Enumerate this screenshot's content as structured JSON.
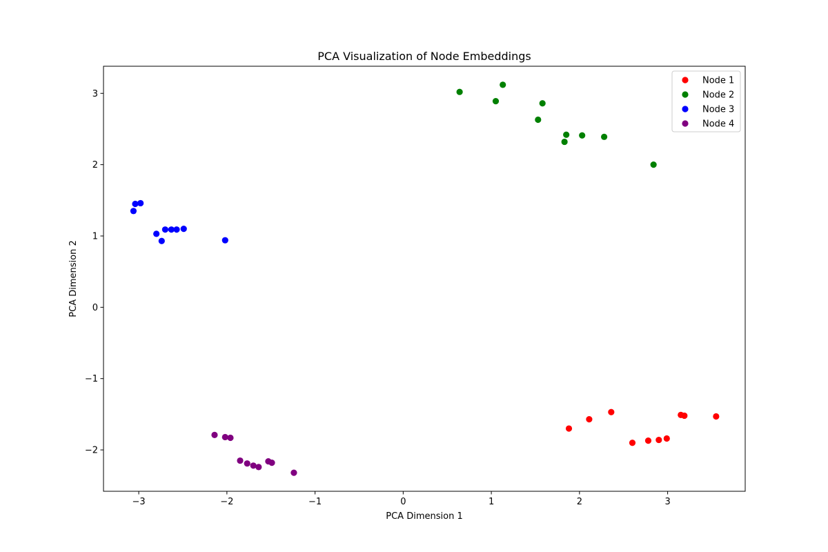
{
  "chart_data": {
    "type": "scatter",
    "title": "PCA Visualization of Node Embeddings",
    "xlabel": "PCA Dimension 1",
    "ylabel": "PCA Dimension 2",
    "xlim": [
      -3.4,
      3.88
    ],
    "ylim": [
      -2.58,
      3.38
    ],
    "xticks": [
      -3,
      -2,
      -1,
      0,
      1,
      2,
      3
    ],
    "yticks": [
      -2,
      -1,
      0,
      1,
      2,
      3
    ],
    "grid": false,
    "legend_position": "top-right",
    "series": [
      {
        "name": "Node 1",
        "color": "#ff0000",
        "points": [
          [
            1.88,
            -1.7
          ],
          [
            2.11,
            -1.57
          ],
          [
            2.36,
            -1.47
          ],
          [
            2.6,
            -1.9
          ],
          [
            2.78,
            -1.87
          ],
          [
            2.9,
            -1.86
          ],
          [
            2.99,
            -1.84
          ],
          [
            3.15,
            -1.51
          ],
          [
            3.19,
            -1.52
          ],
          [
            3.55,
            -1.53
          ]
        ]
      },
      {
        "name": "Node 2",
        "color": "#008000",
        "points": [
          [
            0.64,
            3.02
          ],
          [
            1.05,
            2.89
          ],
          [
            1.13,
            3.12
          ],
          [
            1.53,
            2.63
          ],
          [
            1.58,
            2.86
          ],
          [
            1.83,
            2.32
          ],
          [
            1.85,
            2.42
          ],
          [
            2.03,
            2.41
          ],
          [
            2.28,
            2.39
          ],
          [
            2.84,
            2.0
          ]
        ]
      },
      {
        "name": "Node 3",
        "color": "#0000ff",
        "points": [
          [
            -3.06,
            1.35
          ],
          [
            -3.04,
            1.45
          ],
          [
            -2.98,
            1.46
          ],
          [
            -2.8,
            1.03
          ],
          [
            -2.74,
            0.93
          ],
          [
            -2.7,
            1.09
          ],
          [
            -2.63,
            1.09
          ],
          [
            -2.57,
            1.09
          ],
          [
            -2.49,
            1.1
          ],
          [
            -2.02,
            0.94
          ]
        ]
      },
      {
        "name": "Node 4",
        "color": "#800080",
        "points": [
          [
            -2.14,
            -1.79
          ],
          [
            -2.02,
            -1.82
          ],
          [
            -1.96,
            -1.83
          ],
          [
            -1.85,
            -2.15
          ],
          [
            -1.77,
            -2.19
          ],
          [
            -1.7,
            -2.22
          ],
          [
            -1.64,
            -2.24
          ],
          [
            -1.53,
            -2.16
          ],
          [
            -1.49,
            -2.18
          ],
          [
            -1.24,
            -2.32
          ]
        ]
      }
    ]
  }
}
